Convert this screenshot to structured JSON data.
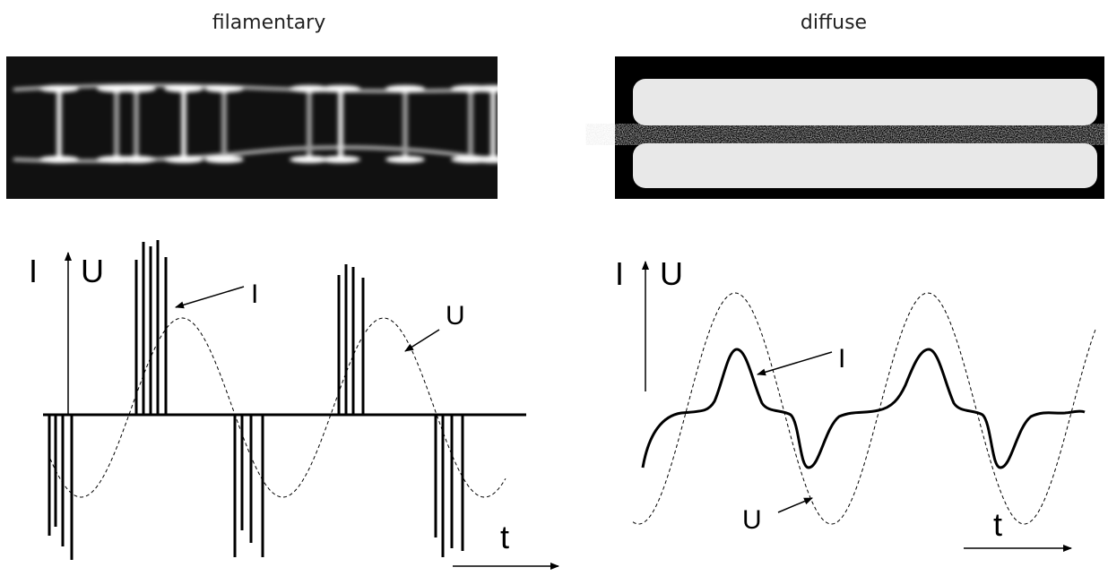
{
  "panels": [
    {
      "title": "filamentary",
      "axis_labels": {
        "current": "I",
        "voltage": "U",
        "time": "t"
      },
      "annotations": {
        "current": "I",
        "voltage": "U"
      }
    },
    {
      "title": "diffuse",
      "axis_labels": {
        "current": "I",
        "voltage": "U",
        "time": "t"
      },
      "annotations": {
        "current": "I",
        "voltage": "U"
      }
    }
  ]
}
